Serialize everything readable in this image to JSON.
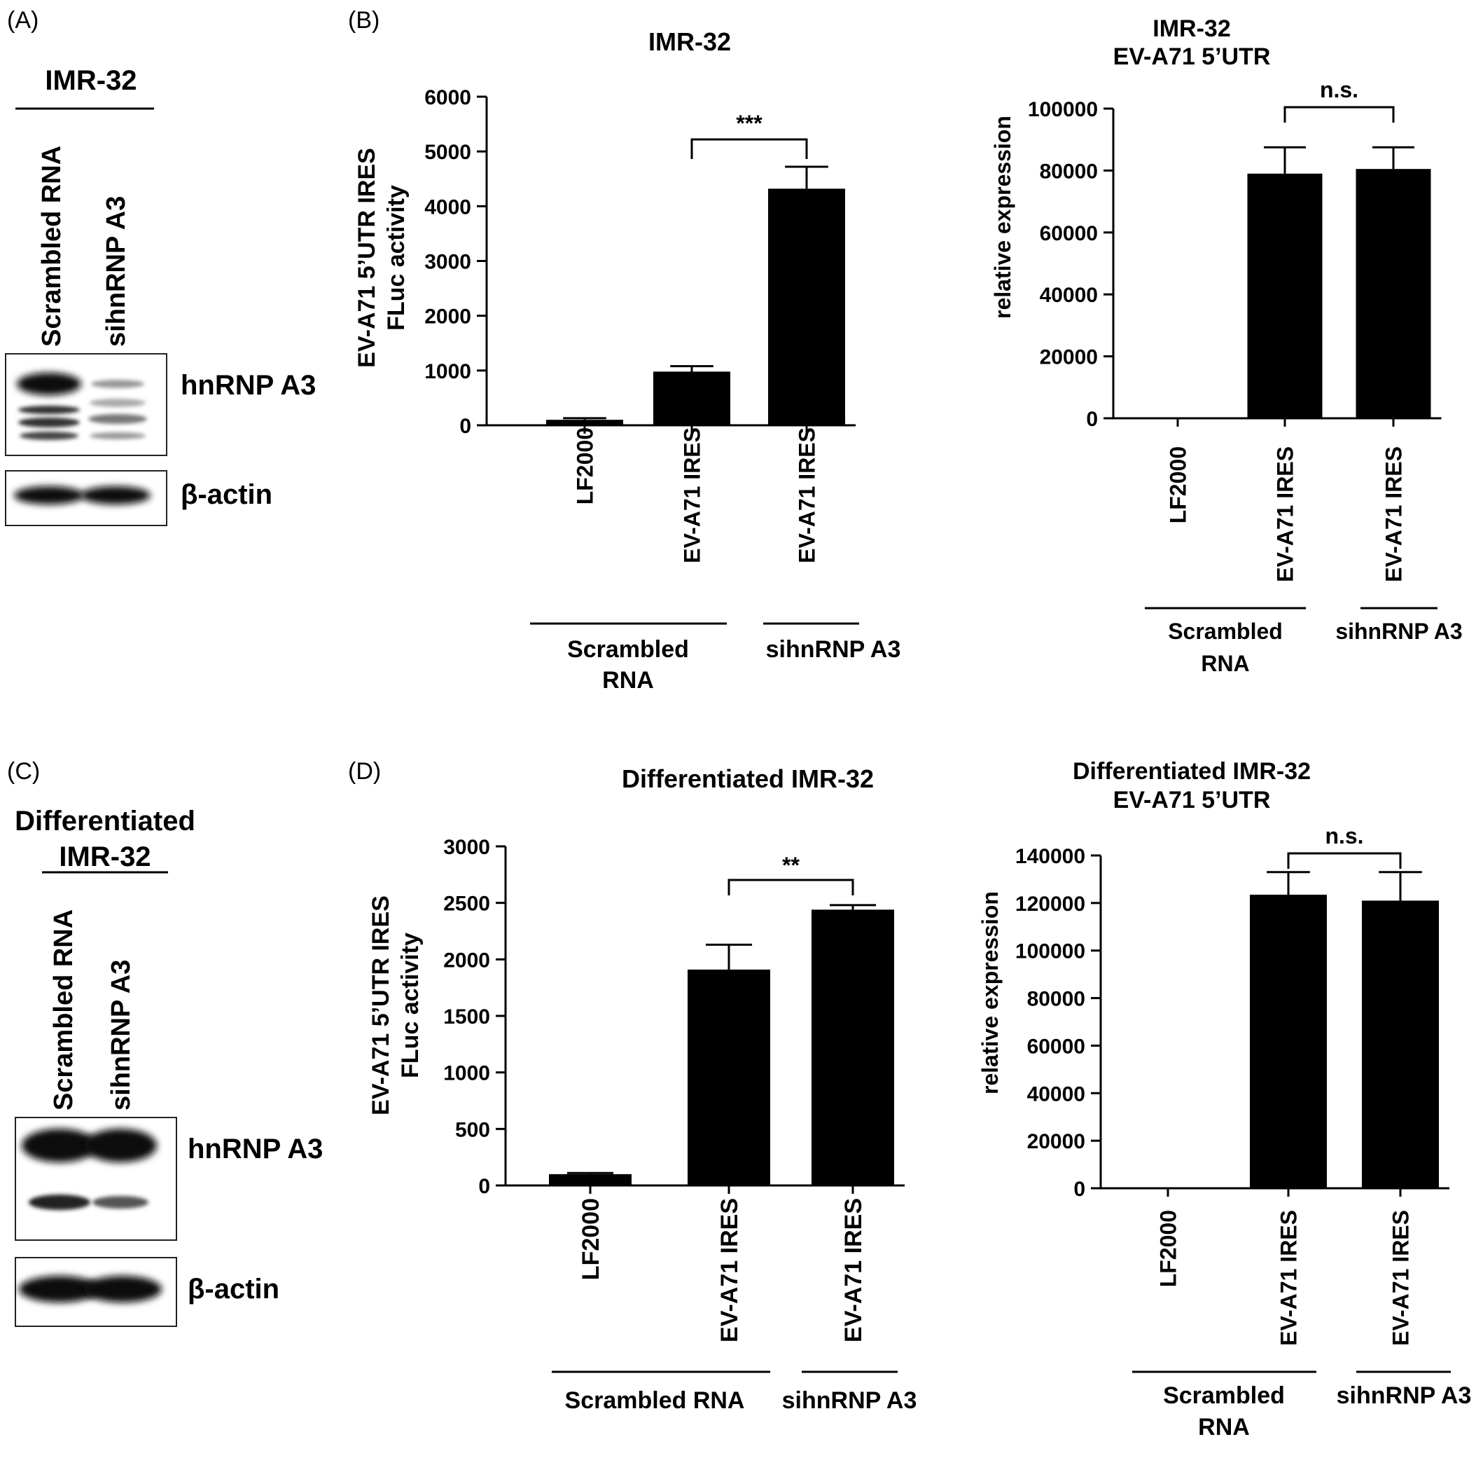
{
  "panels": [
    {
      "letter": "(A)",
      "kind": "blot",
      "cell_line": "IMR-32",
      "lanes": [
        "Scrambled RNA",
        "sihnRNP A3"
      ],
      "blots": [
        "hnRNP A3",
        "β-actin"
      ]
    },
    {
      "letter": "(B)",
      "kind": "charts"
    },
    {
      "letter": "(C)",
      "kind": "blot",
      "cell_line_line1": "Differentiated",
      "cell_line_line2": "IMR-32",
      "lanes": [
        "Scrambled RNA",
        "sihnRNP A3"
      ],
      "blots": [
        "hnRNP A3",
        "β-actin"
      ]
    },
    {
      "letter": "(D)",
      "kind": "charts"
    }
  ],
  "chart_data": [
    {
      "id": "B-left",
      "type": "bar",
      "title": "IMR-32",
      "ylabel_line1": "EV-A71 5’UTR IRES",
      "ylabel_line2": "FLuc activity",
      "ylim": [
        0,
        6000
      ],
      "yticks": [
        "0",
        "1000",
        "2000",
        "3000",
        "4000",
        "5000",
        "6000"
      ],
      "categories": [
        "LF2000",
        "EV-A71 IRES",
        "EV-A71 IRES"
      ],
      "values": [
        100,
        980,
        4320
      ],
      "errors": [
        30,
        100,
        400
      ],
      "groups": [
        {
          "label_lines": [
            "Scrambled",
            "RNA"
          ],
          "categories": [
            0,
            1
          ]
        },
        {
          "label_lines": [
            "sihnRNP A3"
          ],
          "categories": [
            2
          ]
        }
      ],
      "significance": [
        {
          "from": 1,
          "to": 2,
          "label": "***"
        }
      ],
      "color": "#000000"
    },
    {
      "id": "B-right",
      "type": "bar",
      "title_line1": "IMR-32",
      "title_line2": "EV-A71 5’UTR",
      "ylabel": "relative expression",
      "ylim": [
        0,
        100000
      ],
      "yticks": [
        "0",
        "20000",
        "40000",
        "60000",
        "80000",
        "100000"
      ],
      "categories": [
        "LF2000",
        "EV-A71 IRES",
        "EV-A71 IRES"
      ],
      "values": [
        0,
        79000,
        80500
      ],
      "errors": [
        0,
        8500,
        7000
      ],
      "groups": [
        {
          "label_lines": [
            "Scrambled",
            "RNA"
          ],
          "categories": [
            1
          ]
        },
        {
          "label_lines": [
            "sihnRNP A3"
          ],
          "categories": [
            2
          ]
        }
      ],
      "significance": [
        {
          "from": 1,
          "to": 2,
          "label": "n.s."
        }
      ],
      "color": "#000000"
    },
    {
      "id": "D-left",
      "type": "bar",
      "title": "Differentiated  IMR-32",
      "ylabel_line1": "EV-A71 5’UTR IRES",
      "ylabel_line2": "FLuc activity",
      "ylim": [
        0,
        3000
      ],
      "yticks": [
        "0",
        "500",
        "1000",
        "1500",
        "2000",
        "2500",
        "3000"
      ],
      "categories": [
        "LF2000",
        "EV-A71 IRES",
        "EV-A71 IRES"
      ],
      "values": [
        100,
        1910,
        2440
      ],
      "errors": [
        10,
        220,
        40
      ],
      "groups": [
        {
          "label_lines": [
            "Scrambled RNA"
          ],
          "categories": [
            0,
            1
          ]
        },
        {
          "label_lines": [
            "sihnRNP A3"
          ],
          "categories": [
            2
          ]
        }
      ],
      "significance": [
        {
          "from": 1,
          "to": 2,
          "label": "**"
        }
      ],
      "color": "#000000"
    },
    {
      "id": "D-right",
      "type": "bar",
      "title_line1": "Differentiated IMR-32",
      "title_line2": "EV-A71 5’UTR",
      "ylabel": "relative expression",
      "ylim": [
        0,
        140000
      ],
      "yticks": [
        "0",
        "20000",
        "40000",
        "60000",
        "80000",
        "100000",
        "120000",
        "140000"
      ],
      "categories": [
        "LF2000",
        "EV-A71 IRES",
        "EV-A71 IRES"
      ],
      "values": [
        0,
        123500,
        121000
      ],
      "errors": [
        0,
        9500,
        12000
      ],
      "groups": [
        {
          "label_lines": [
            "Scrambled",
            "RNA"
          ],
          "categories": [
            1
          ]
        },
        {
          "label_lines": [
            "sihnRNP A3"
          ],
          "categories": [
            2
          ]
        }
      ],
      "significance": [
        {
          "from": 1,
          "to": 2,
          "label": "n.s."
        }
      ],
      "color": "#000000"
    }
  ]
}
